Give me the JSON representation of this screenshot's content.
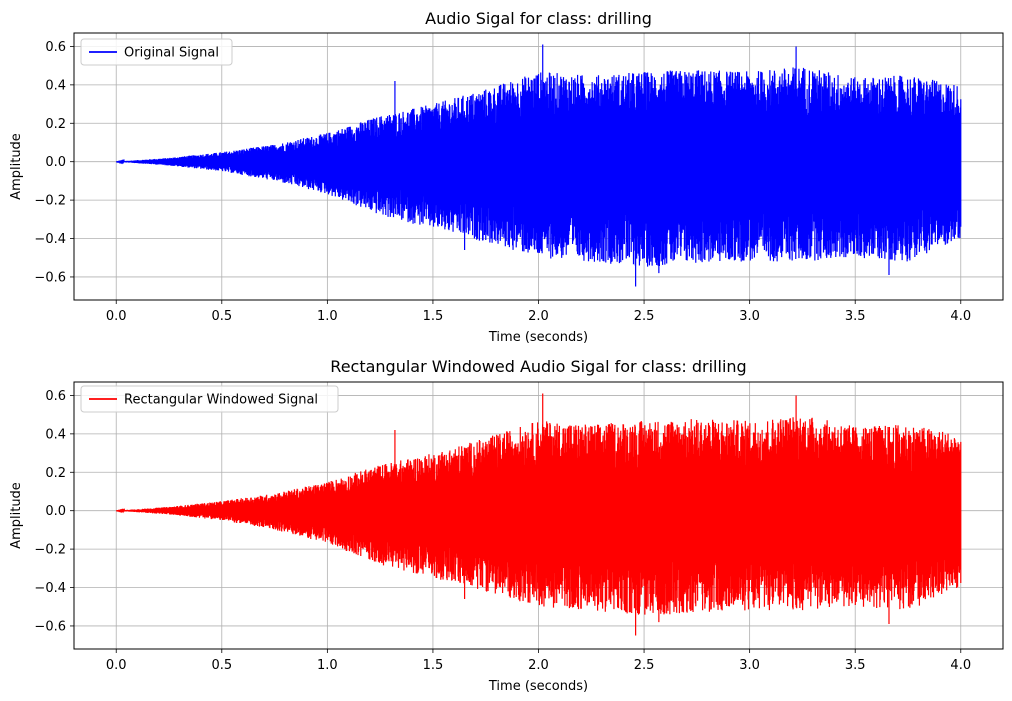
{
  "chart_data": [
    {
      "type": "line",
      "title": "Audio Sigal for class: drilling",
      "xlabel": "Time (seconds)",
      "ylabel": "Amplitude",
      "xlim": [
        -0.2,
        4.2
      ],
      "ylim": [
        -0.72,
        0.67
      ],
      "xticks": [
        0.0,
        0.5,
        1.0,
        1.5,
        2.0,
        2.5,
        3.0,
        3.5,
        4.0
      ],
      "xtick_labels": [
        "0.0",
        "0.5",
        "1.0",
        "1.5",
        "2.0",
        "2.5",
        "3.0",
        "3.5",
        "4.0"
      ],
      "yticks": [
        -0.6,
        -0.4,
        -0.2,
        0.0,
        0.2,
        0.4,
        0.6
      ],
      "ytick_labels": [
        "−0.6",
        "−0.4",
        "−0.2",
        "0.0",
        "0.2",
        "0.4",
        "0.6"
      ],
      "grid": true,
      "legend_position": "upper-left",
      "series": [
        {
          "name": "Original Signal",
          "color": "#0000ff",
          "envelope_time": [
            0.0,
            0.25,
            0.5,
            0.75,
            1.0,
            1.25,
            1.5,
            1.75,
            2.0,
            2.25,
            2.5,
            2.75,
            3.0,
            3.25,
            3.5,
            3.75,
            4.0
          ],
          "envelope_max": [
            0.0,
            0.02,
            0.05,
            0.09,
            0.15,
            0.24,
            0.3,
            0.38,
            0.47,
            0.45,
            0.47,
            0.48,
            0.47,
            0.5,
            0.44,
            0.45,
            0.4
          ],
          "envelope_min": [
            0.0,
            -0.02,
            -0.05,
            -0.1,
            -0.17,
            -0.28,
            -0.35,
            -0.42,
            -0.5,
            -0.52,
            -0.55,
            -0.53,
            -0.52,
            -0.52,
            -0.5,
            -0.52,
            -0.4
          ],
          "peaks": [
            [
              1.32,
              0.42
            ],
            [
              1.65,
              -0.46
            ],
            [
              2.02,
              0.61
            ],
            [
              2.46,
              -0.65
            ],
            [
              2.57,
              -0.58
            ],
            [
              3.22,
              0.6
            ],
            [
              3.66,
              -0.59
            ]
          ],
          "time_end": 4.0
        }
      ]
    },
    {
      "type": "line",
      "title": "Rectangular Windowed Audio Sigal for class: drilling",
      "xlabel": "Time (seconds)",
      "ylabel": "Amplitude",
      "xlim": [
        -0.2,
        4.2
      ],
      "ylim": [
        -0.72,
        0.67
      ],
      "xticks": [
        0.0,
        0.5,
        1.0,
        1.5,
        2.0,
        2.5,
        3.0,
        3.5,
        4.0
      ],
      "xtick_labels": [
        "0.0",
        "0.5",
        "1.0",
        "1.5",
        "2.0",
        "2.5",
        "3.0",
        "3.5",
        "4.0"
      ],
      "yticks": [
        -0.6,
        -0.4,
        -0.2,
        0.0,
        0.2,
        0.4,
        0.6
      ],
      "ytick_labels": [
        "−0.6",
        "−0.4",
        "−0.2",
        "0.0",
        "0.2",
        "0.4",
        "0.6"
      ],
      "grid": true,
      "legend_position": "upper-left",
      "series": [
        {
          "name": "Rectangular Windowed Signal",
          "color": "#ff0000",
          "envelope_time": [
            0.0,
            0.25,
            0.5,
            0.75,
            1.0,
            1.25,
            1.5,
            1.75,
            2.0,
            2.25,
            2.5,
            2.75,
            3.0,
            3.25,
            3.5,
            3.75,
            4.0
          ],
          "envelope_max": [
            0.0,
            0.02,
            0.05,
            0.09,
            0.15,
            0.24,
            0.3,
            0.38,
            0.47,
            0.45,
            0.47,
            0.48,
            0.47,
            0.5,
            0.44,
            0.45,
            0.4
          ],
          "envelope_min": [
            0.0,
            -0.02,
            -0.05,
            -0.1,
            -0.17,
            -0.28,
            -0.35,
            -0.42,
            -0.5,
            -0.52,
            -0.55,
            -0.53,
            -0.52,
            -0.52,
            -0.5,
            -0.52,
            -0.4
          ],
          "peaks": [
            [
              1.32,
              0.42
            ],
            [
              1.65,
              -0.46
            ],
            [
              2.02,
              0.61
            ],
            [
              2.46,
              -0.65
            ],
            [
              2.57,
              -0.58
            ],
            [
              3.22,
              0.6
            ],
            [
              3.66,
              -0.59
            ]
          ],
          "time_end": 4.0
        }
      ]
    }
  ]
}
